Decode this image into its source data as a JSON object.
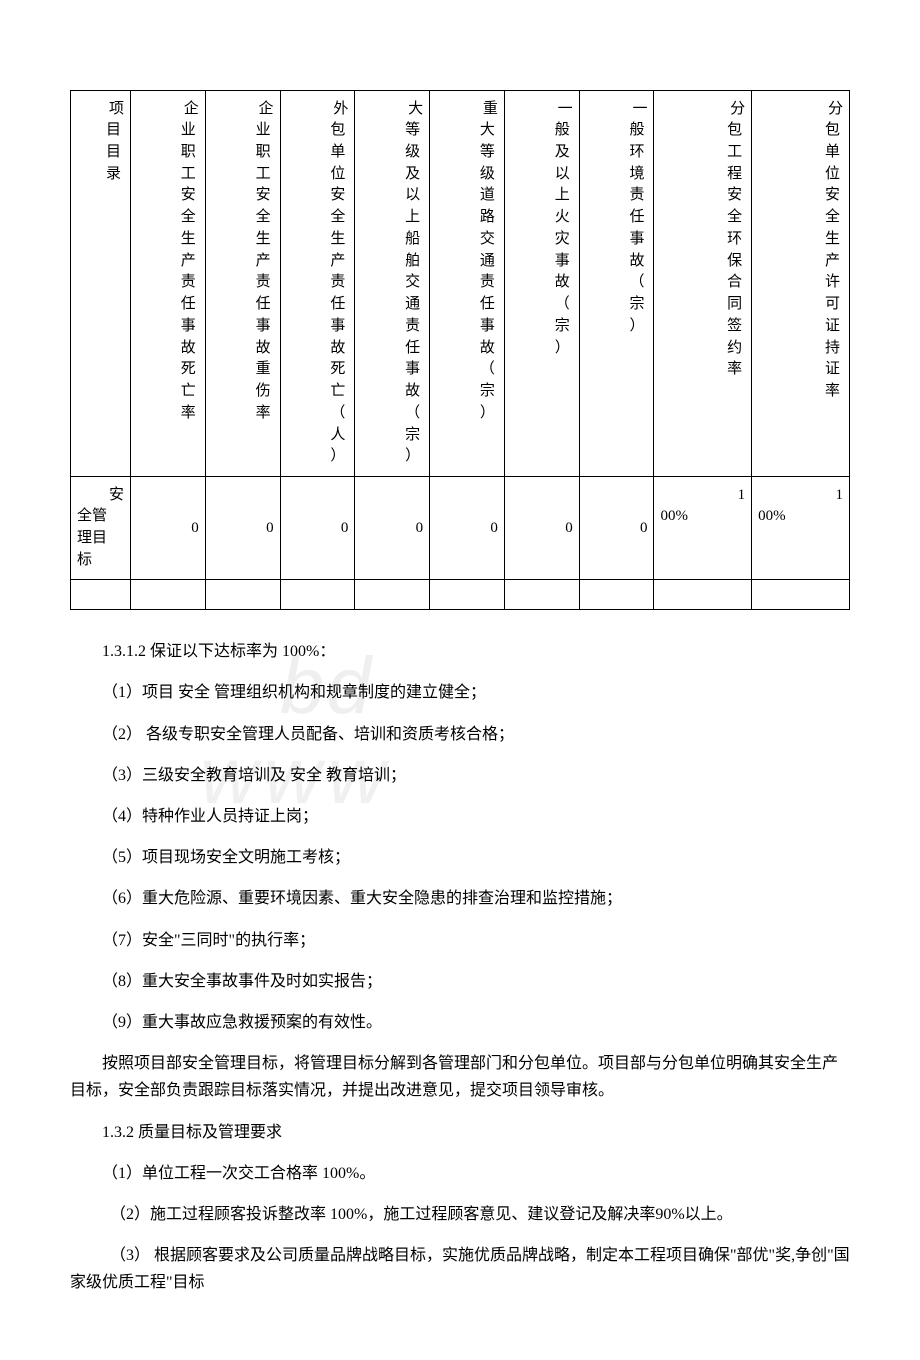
{
  "table": {
    "header_leading": [
      "项",
      "企",
      "企",
      "外",
      "大",
      "重",
      "一",
      "一",
      "分",
      "分"
    ],
    "headers": [
      "目目录",
      "业职工安全生产责任事故死亡率",
      "业职工安全生产责任事故重伤率",
      "包单位安全生产责任事故死亡（人）",
      "等级及以上船舶交通责任事故（宗）",
      "大等级道路交通责任事故（宗）",
      "般及以上火灾事故（宗）",
      "般环境责任事故（宗）",
      "包工程安全环保合同签约率",
      "包单位安全生产许可证持证率"
    ],
    "row_label_leading": "安",
    "row_label": "全管理目标",
    "values": [
      "0",
      "0",
      "0",
      "0",
      "0",
      "0",
      "0",
      "100%",
      "100%"
    ],
    "percent_prefix": "1",
    "percent_suffix": "00%",
    "colors": {
      "border": "#000000",
      "text": "#000000",
      "background": "#ffffff"
    }
  },
  "section1": {
    "heading": "1.3.1.2 保证以下达标率为 100%：",
    "items": [
      "（1）项目 安全 管理组织机构和规章制度的建立健全；",
      "（2） 各级专职安全管理人员配备、培训和资质考核合格；",
      "（3）三级安全教育培训及 安全 教育培训；",
      "（4）特种作业人员持证上岗；",
      "（5）项目现场安全文明施工考核；",
      "（6）重大危险源、重要环境因素、重大安全隐患的排查治理和监控措施；",
      "（7）安全\"三同时\"的执行率；",
      "（8）重大安全事故事件及时如实报告；",
      "（9）重大事故应急救援预案的有效性。"
    ]
  },
  "paragraph1": "按照项目部安全管理目标，将管理目标分解到各管理部门和分包单位。项目部与分包单位明确其安全生产目标，安全部负责跟踪目标落实情况，并提出改进意见，提交项目领导审核。",
  "section2": {
    "heading": "1.3.2 质量目标及管理要求",
    "items": [
      "（1）单位工程一次交工合格率 100%。",
      "（2）施工过程顾客投诉整改率 100%，施工过程顾客意见、建议登记及解决率90%以上。",
      "（3） 根据顾客要求及公司质量品牌战略目标，实施优质品牌战略，制定本工程项目确保\"部优\"奖,争创\"国家级优质工程\"目标"
    ]
  }
}
